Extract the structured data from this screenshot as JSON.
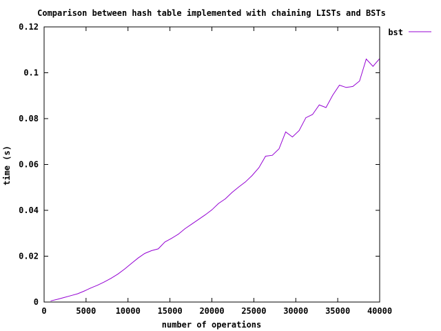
{
  "chart_data": {
    "type": "line",
    "title": "Comparison between hash table implemented with chaining LISTs and BSTs",
    "xlabel": "number of operations",
    "ylabel": "time (s)",
    "xlim": [
      0,
      40000
    ],
    "ylim": [
      0,
      0.12
    ],
    "xticks": [
      0,
      5000,
      10000,
      15000,
      20000,
      25000,
      30000,
      35000,
      40000
    ],
    "yticks": [
      0,
      0.02,
      0.04,
      0.06,
      0.08,
      0.1,
      0.12
    ],
    "xtick_labels": [
      "0",
      "5000",
      "10000",
      "15000",
      "20000",
      "25000",
      "30000",
      "35000",
      "40000"
    ],
    "ytick_labels": [
      "0",
      "0.02",
      "0.04",
      "0.06",
      "0.08",
      "0.1",
      "0.12"
    ],
    "grid": false,
    "legend_position": "outside-right-top",
    "series": [
      {
        "name": "bst",
        "color": "#9400d3",
        "x": [
          800,
          1600,
          2400,
          3200,
          4000,
          4800,
          5600,
          6400,
          7200,
          8000,
          8800,
          9600,
          10400,
          11200,
          12000,
          12800,
          13600,
          14400,
          15200,
          16000,
          16800,
          17600,
          18400,
          19200,
          20000,
          20800,
          21600,
          22400,
          23200,
          24000,
          24800,
          25600,
          26400,
          27200,
          28000,
          28800,
          29600,
          30400,
          31200,
          32000,
          32800,
          33600,
          34400,
          35200,
          36000,
          36800,
          37600,
          38400,
          39200,
          40000
        ],
        "y": [
          0.0005,
          0.0012,
          0.002,
          0.0028,
          0.0036,
          0.0048,
          0.0062,
          0.0074,
          0.0088,
          0.0104,
          0.0122,
          0.0144,
          0.0168,
          0.0192,
          0.0212,
          0.0224,
          0.0232,
          0.0262,
          0.0278,
          0.0296,
          0.032,
          0.034,
          0.036,
          0.038,
          0.0402,
          0.043,
          0.045,
          0.0478,
          0.0502,
          0.0524,
          0.0552,
          0.0586,
          0.0636,
          0.064,
          0.0668,
          0.0742,
          0.072,
          0.0748,
          0.0804,
          0.0818,
          0.086,
          0.0848,
          0.0902,
          0.0946,
          0.0936,
          0.094,
          0.0964,
          0.106,
          0.1028,
          0.1062
        ]
      }
    ]
  }
}
